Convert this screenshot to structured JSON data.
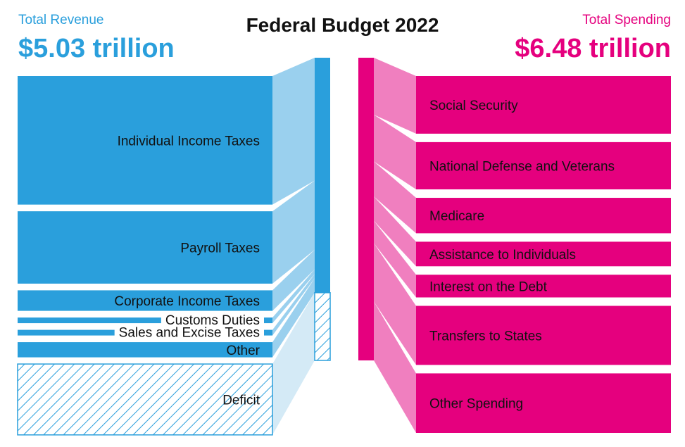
{
  "title": "Federal Budget 2022",
  "revenue": {
    "label": "Total Revenue",
    "total": "$5.03 trillion"
  },
  "spending": {
    "label": "Total Spending",
    "total": "$6.48 trillion"
  },
  "colors": {
    "revenue": "#2a9fdc",
    "revenue_light": "#9ad0ee",
    "spending": "#e5007e",
    "spending_light": "#f07fbf",
    "deficit_light": "#d4eaf6"
  },
  "chart_data": {
    "type": "sankey",
    "title": "Federal Budget 2022",
    "units": "trillion USD",
    "revenue_total": 5.03,
    "spending_total": 6.48,
    "sources": [
      {
        "name": "Individual Income Taxes",
        "value": 2.63
      },
      {
        "name": "Payroll Taxes",
        "value": 1.48
      },
      {
        "name": "Corporate Income Taxes",
        "value": 0.42
      },
      {
        "name": "Customs Duties",
        "value": 0.1
      },
      {
        "name": "Sales and Excise Taxes",
        "value": 0.09
      },
      {
        "name": "Other",
        "value": 0.31
      },
      {
        "name": "Deficit",
        "value": 1.45,
        "hatched": true
      }
    ],
    "targets": [
      {
        "name": "Social Security",
        "value": 1.22
      },
      {
        "name": "National Defense and Veterans",
        "value": 1.0
      },
      {
        "name": "Medicare",
        "value": 0.75
      },
      {
        "name": "Assistance to Individuals",
        "value": 0.52
      },
      {
        "name": "Interest on the Debt",
        "value": 0.48
      },
      {
        "name": "Transfers to States",
        "value": 1.25
      },
      {
        "name": "Other Spending",
        "value": 1.26
      }
    ]
  }
}
